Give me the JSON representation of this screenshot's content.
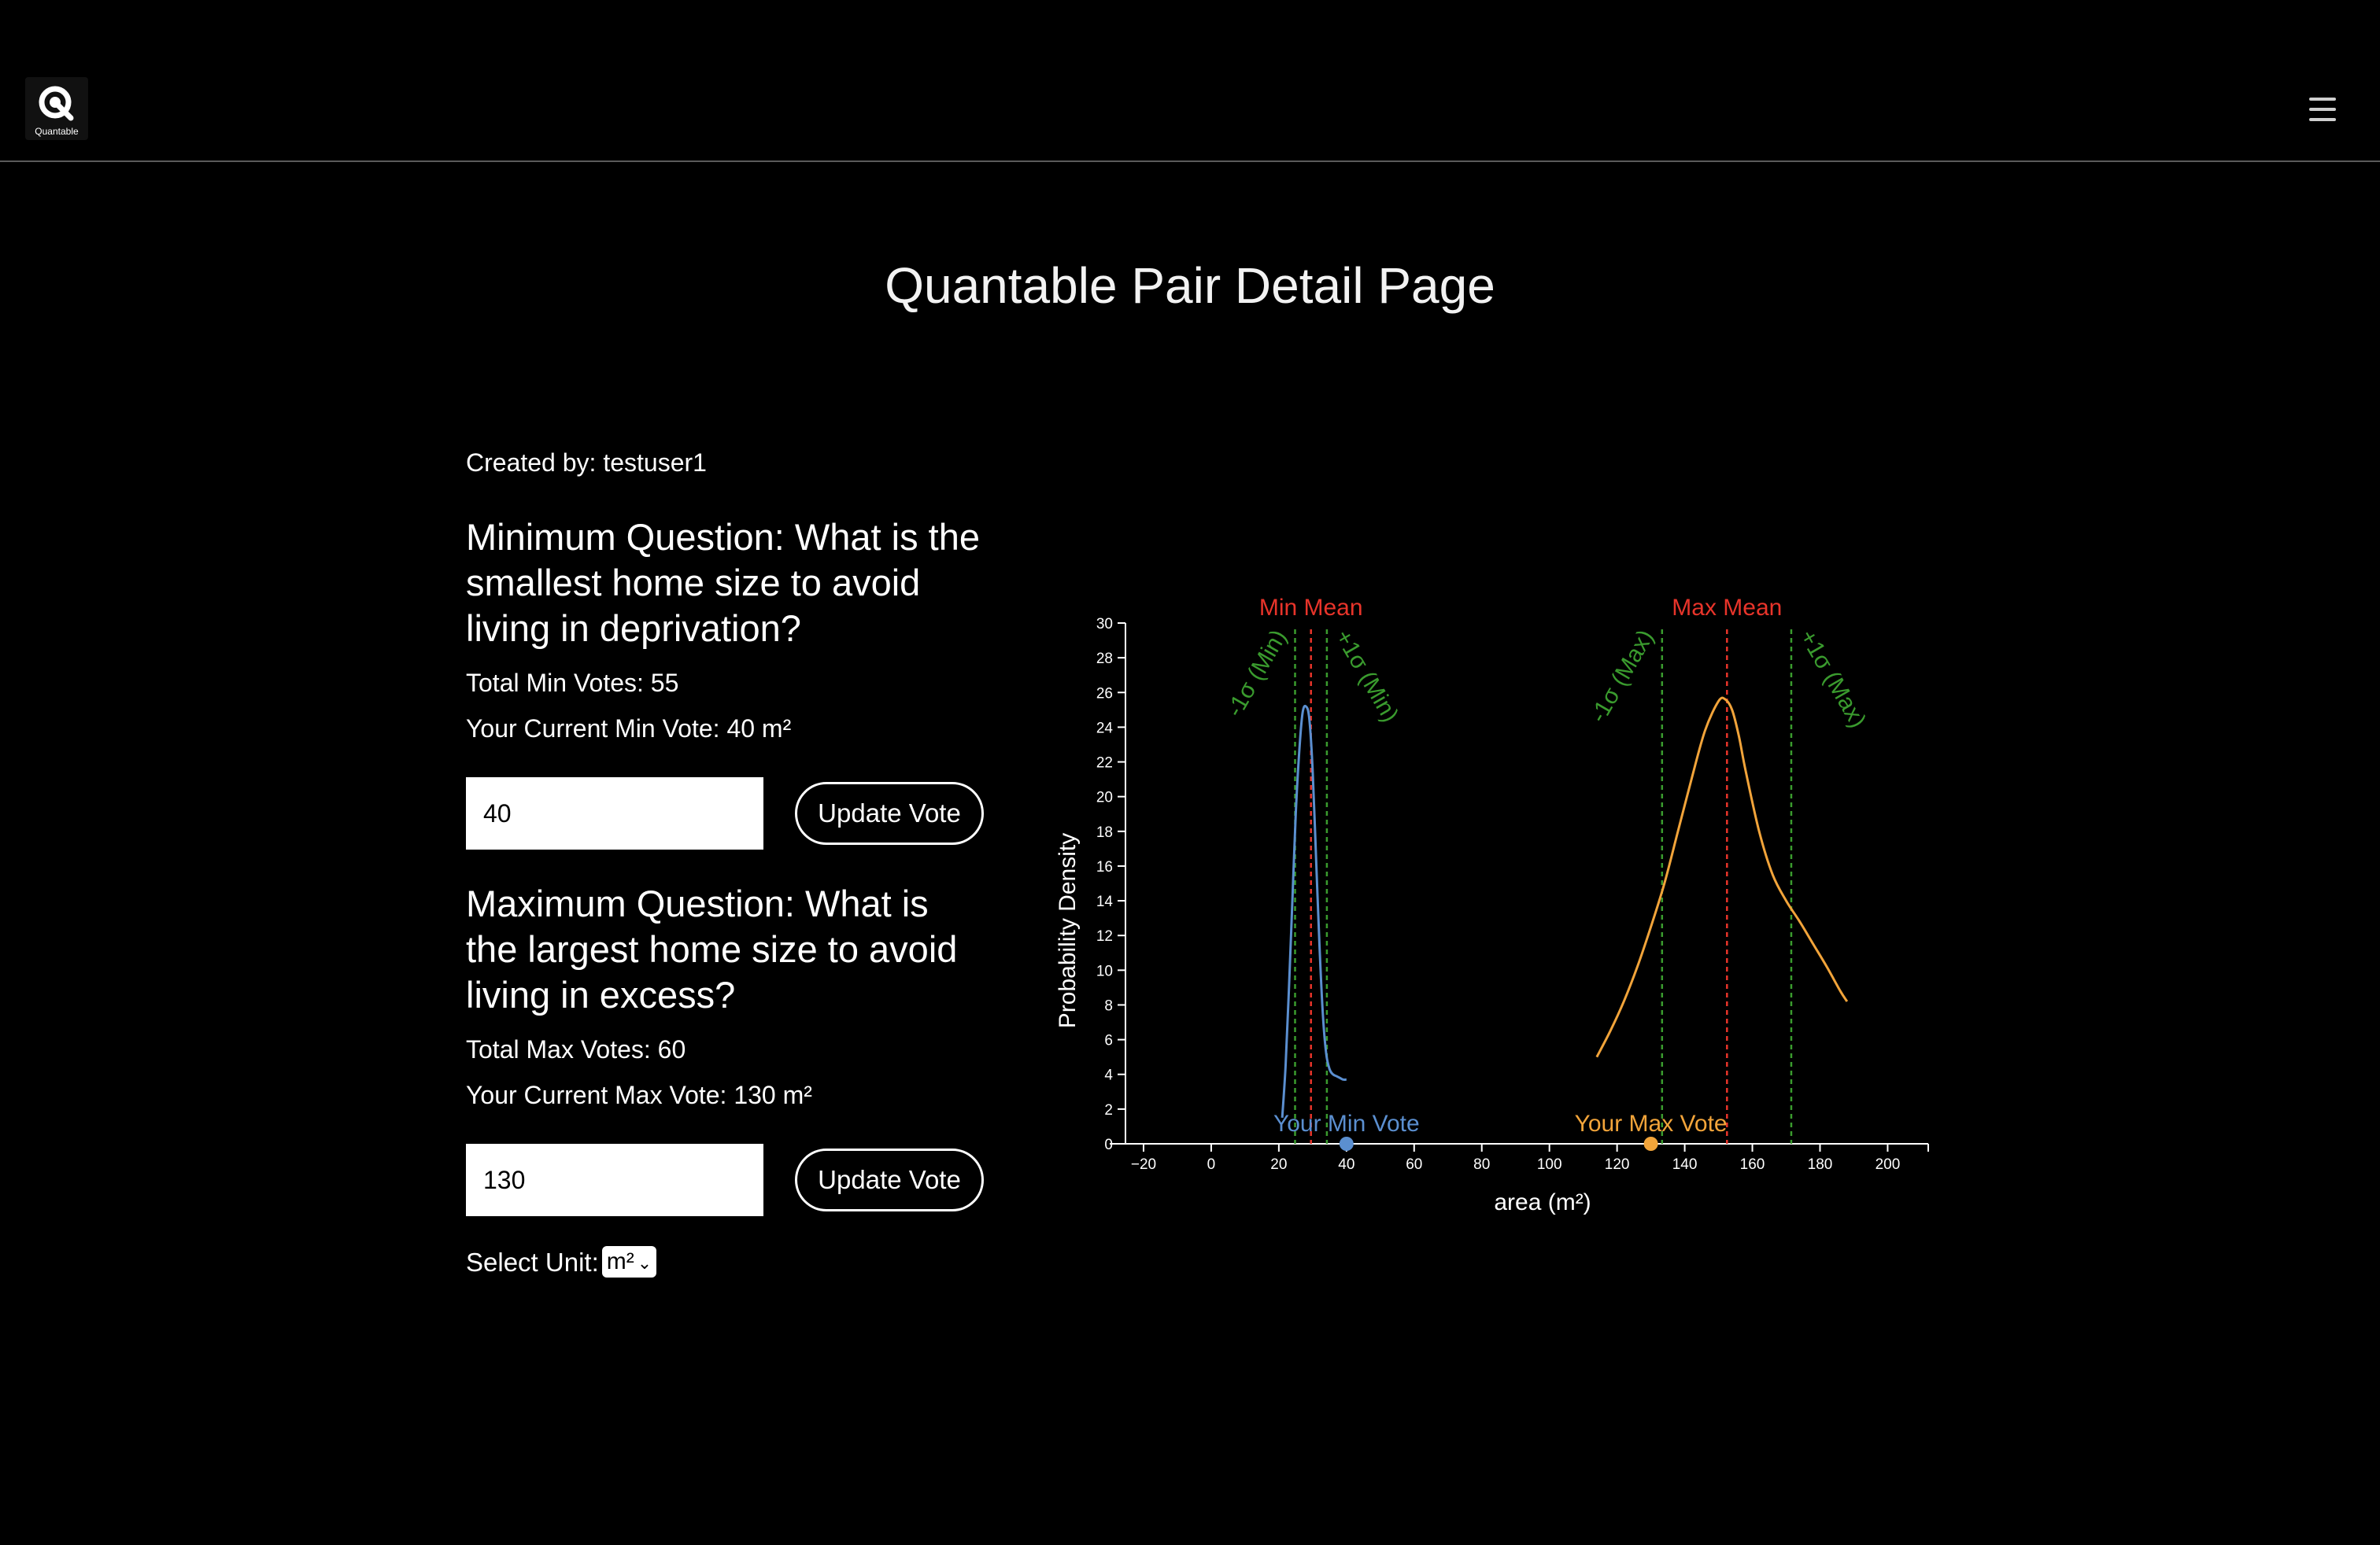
{
  "header": {
    "logo_text": "Quantable",
    "logo_icon": "quantable-q-logo-icon",
    "menu_icon": "hamburger-menu-icon"
  },
  "page": {
    "title": "Quantable Pair Detail Page"
  },
  "creator": {
    "text": "Created by: testuser1"
  },
  "min_question": {
    "text": "Minimum Question: What is the smallest home size to avoid living in deprivation?",
    "total_votes": "Total Min Votes: 55",
    "current_vote": "Your Current Min Vote: 40 m²",
    "input_value": "40",
    "button_label": "Update Vote"
  },
  "max_question": {
    "text": "Maximum Question: What is the largest home size to avoid living in excess?",
    "total_votes": "Total Max Votes: 60",
    "current_vote": "Your Current Max Vote: 130 m²",
    "input_value": "130",
    "button_label": "Update Vote"
  },
  "unit": {
    "label": "Select Unit:",
    "selected": "m²"
  },
  "chart_data": {
    "type": "line",
    "xlabel": "area (m²)",
    "ylabel": "Probability Density",
    "xlim": [
      -30,
      212
    ],
    "ylim": [
      0,
      30
    ],
    "x_ticks": [
      -20,
      0,
      20,
      40,
      60,
      80,
      100,
      120,
      140,
      160,
      180,
      200
    ],
    "y_ticks": [
      0,
      2,
      4,
      6,
      8,
      10,
      12,
      14,
      16,
      18,
      20,
      22,
      24,
      26,
      28,
      30
    ],
    "colors": {
      "min": "#5b8fd0",
      "max": "#f2a43a",
      "mean": "#e8342a",
      "sigma": "#3a9b2e"
    },
    "series": [
      {
        "key": "min",
        "x": [
          21,
          22,
          23,
          24,
          25,
          26,
          27,
          28,
          29,
          30,
          31,
          32,
          33,
          34,
          35,
          36,
          37,
          38,
          39,
          40
        ],
        "y": [
          1.5,
          4.5,
          9,
          14,
          19,
          22.5,
          24.8,
          25.2,
          24.5,
          21.5,
          16.5,
          11.5,
          7.5,
          5.2,
          4.3,
          4.0,
          3.9,
          3.8,
          3.7,
          3.7
        ]
      },
      {
        "key": "max",
        "x": [
          114,
          118,
          122,
          126,
          130,
          134,
          138,
          142,
          146,
          150,
          152,
          154,
          156,
          158,
          162,
          166,
          170,
          174,
          178,
          182,
          186,
          188
        ],
        "y": [
          5,
          6.5,
          8.2,
          10.2,
          12.5,
          15,
          18,
          21,
          23.8,
          25.5,
          25.6,
          25,
          23.5,
          21.5,
          18,
          15.5,
          14,
          12.8,
          11.5,
          10.2,
          8.8,
          8.2
        ]
      }
    ],
    "vlines": [
      {
        "x": 29.5,
        "type": "mean",
        "label": "Min Mean"
      },
      {
        "x": 24.8,
        "type": "sigma",
        "label": "-1σ (Min)"
      },
      {
        "x": 34.2,
        "type": "sigma",
        "label": "+1σ (Min)"
      },
      {
        "x": 152.5,
        "type": "mean",
        "label": "Max Mean"
      },
      {
        "x": 133.3,
        "type": "sigma",
        "label": "-1σ (Max)"
      },
      {
        "x": 171.5,
        "type": "sigma",
        "label": "+1σ (Max)"
      }
    ],
    "votes": [
      {
        "x": 40,
        "label": "Your Min Vote",
        "color": "#5b8fd0"
      },
      {
        "x": 130,
        "label": "Your Max Vote",
        "color": "#f2a43a"
      }
    ]
  }
}
